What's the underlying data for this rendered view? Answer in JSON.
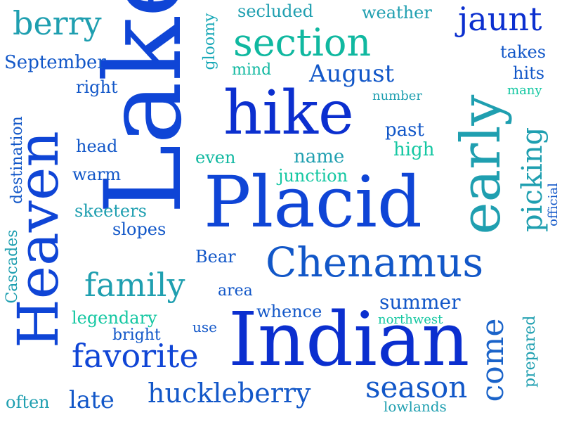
{
  "words": {
    "lake": "Lake",
    "placid": "Placid",
    "indian": "Indian",
    "hike": "hike",
    "chenamus": "Chenamus",
    "heaven": "Heaven",
    "early": "early",
    "section": "section",
    "family": "family",
    "favorite": "favorite",
    "huckleberry": "huckleberry",
    "season": "season",
    "come": "come",
    "picking": "picking",
    "jaunt": "jaunt",
    "berry": "berry",
    "august": "August",
    "september": "September",
    "weather": "weather",
    "secluded": "secluded",
    "gloomy": "gloomy",
    "mind": "mind",
    "takes": "takes",
    "hits": "hits",
    "many": "many",
    "right": "right",
    "number": "number",
    "past": "past",
    "high": "high",
    "head": "head",
    "even": "even",
    "name": "name",
    "warm": "warm",
    "junction": "junction",
    "destination": "destination",
    "skeeters": "skeeters",
    "slopes": "slopes",
    "official": "official",
    "cascades": "Cascades",
    "bear": "Bear",
    "area": "area",
    "legendary": "legendary",
    "whence": "whence",
    "summer": "summer",
    "prepared": "prepared",
    "bright": "bright",
    "use": "use",
    "northwest": "northwest",
    "late": "late",
    "often": "often",
    "lowlands": "lowlands"
  }
}
